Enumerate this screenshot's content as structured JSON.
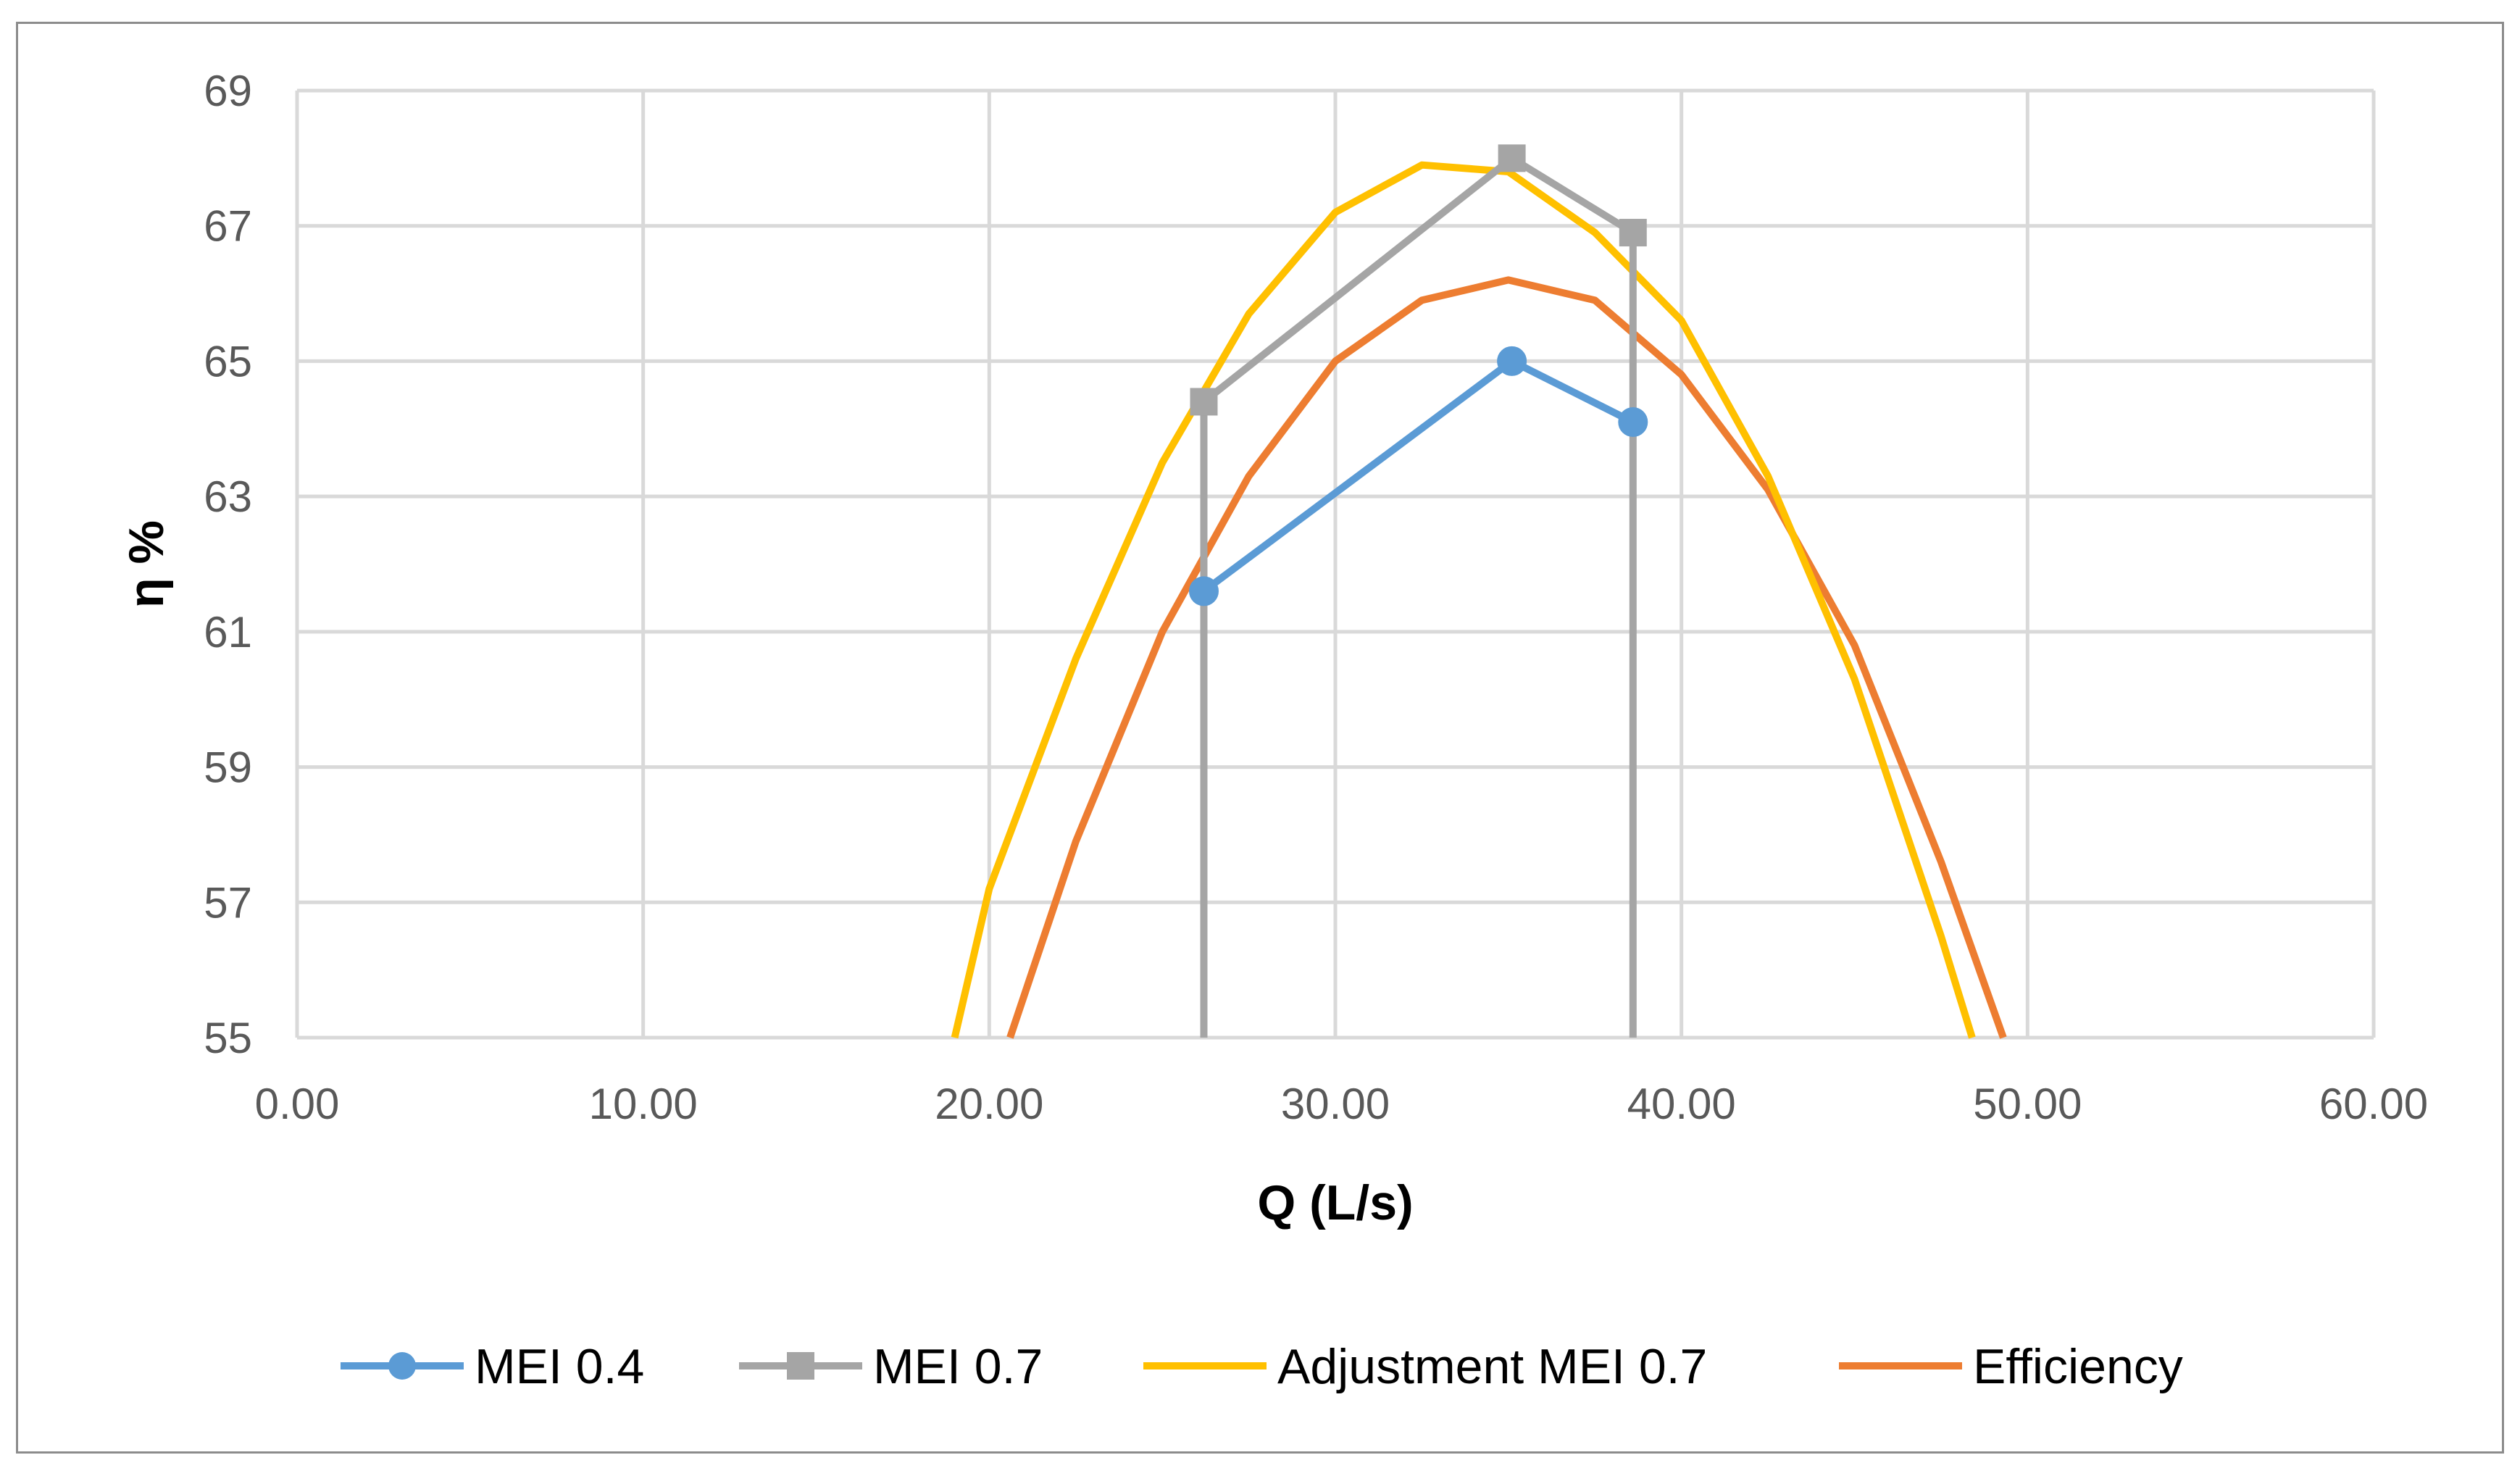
{
  "chart_data": {
    "type": "line",
    "title": "",
    "xlabel": "Q (L/s)",
    "ylabel": "η %",
    "xlim": [
      0,
      60
    ],
    "ylim": [
      55,
      69
    ],
    "x_ticks": [
      "0.00",
      "10.00",
      "20.00",
      "30.00",
      "40.00",
      "50.00",
      "60.00"
    ],
    "y_ticks": [
      "55",
      "57",
      "59",
      "61",
      "63",
      "65",
      "67",
      "69"
    ],
    "grid": true,
    "legend_position": "bottom",
    "series": [
      {
        "name": "MEI 0.4",
        "color": "#5b9bd5",
        "marker": "circle",
        "points": [
          [
            26.2,
            61.6
          ],
          [
            35.1,
            65.0
          ],
          [
            38.6,
            64.1
          ]
        ]
      },
      {
        "name": "MEI 0.7",
        "color": "#a5a5a5",
        "marker": "square",
        "points": [
          [
            26.2,
            55.0
          ],
          [
            26.2,
            64.4
          ],
          [
            35.1,
            68.0
          ],
          [
            38.6,
            66.9
          ],
          [
            38.6,
            55.0
          ]
        ]
      },
      {
        "name": "Adjustment MEI 0.7",
        "color": "#ffc000",
        "marker": "none",
        "points": [
          [
            19.0,
            55.0
          ],
          [
            20.0,
            57.2
          ],
          [
            22.5,
            60.6
          ],
          [
            25.0,
            63.5
          ],
          [
            27.5,
            65.7
          ],
          [
            30.0,
            67.2
          ],
          [
            32.5,
            67.9
          ],
          [
            35.0,
            67.8
          ],
          [
            37.5,
            66.9
          ],
          [
            40.0,
            65.6
          ],
          [
            42.5,
            63.3
          ],
          [
            45.0,
            60.3
          ],
          [
            47.5,
            56.5
          ],
          [
            48.4,
            55.0
          ]
        ]
      },
      {
        "name": "Efficiency",
        "color": "#ed7d31",
        "marker": "none",
        "points": [
          [
            20.6,
            55.0
          ],
          [
            22.5,
            57.9
          ],
          [
            25.0,
            61.0
          ],
          [
            27.5,
            63.3
          ],
          [
            30.0,
            65.0
          ],
          [
            32.5,
            65.9
          ],
          [
            35.0,
            66.2
          ],
          [
            37.5,
            65.9
          ],
          [
            40.0,
            64.8
          ],
          [
            42.5,
            63.1
          ],
          [
            45.0,
            60.8
          ],
          [
            47.5,
            57.6
          ],
          [
            49.3,
            55.0
          ]
        ]
      }
    ]
  }
}
